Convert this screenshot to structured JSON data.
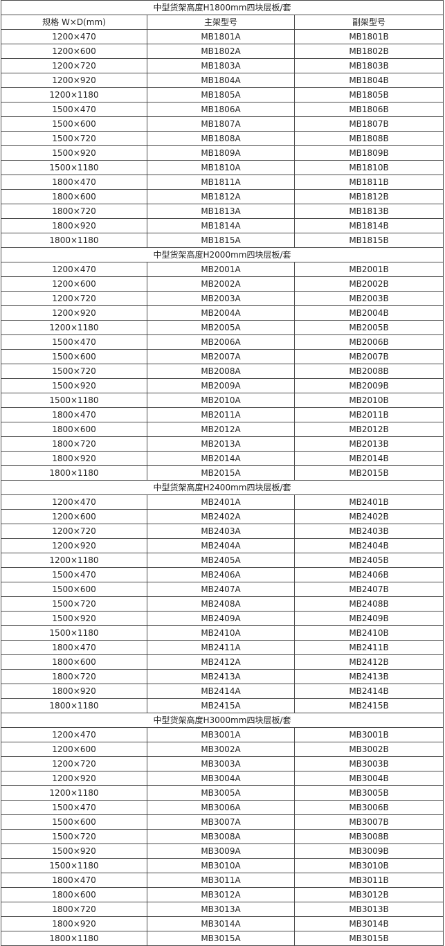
{
  "header": {
    "spec": "规格 W×D(mm)",
    "main": "主架型号",
    "sub": "副架型号"
  },
  "sections": [
    {
      "title": "中型货架高度H1800mm四块层板/套",
      "rows": [
        [
          "1200×470",
          "MB1801A",
          "MB1801B"
        ],
        [
          "1200×600",
          "MB1802A",
          "MB1802B"
        ],
        [
          "1200×720",
          "MB1803A",
          "MB1803B"
        ],
        [
          "1200×920",
          "MB1804A",
          "MB1804B"
        ],
        [
          "1200×1180",
          "MB1805A",
          "MB1805B"
        ],
        [
          "1500×470",
          "MB1806A",
          "MB1806B"
        ],
        [
          "1500×600",
          "MB1807A",
          "MB1807B"
        ],
        [
          "1500×720",
          "MB1808A",
          "MB1808B"
        ],
        [
          "1500×920",
          "MB1809A",
          "MB1809B"
        ],
        [
          "1500×1180",
          "MB1810A",
          "MB1810B"
        ],
        [
          "1800×470",
          "MB1811A",
          "MB1811B"
        ],
        [
          "1800×600",
          "MB1812A",
          "MB1812B"
        ],
        [
          "1800×720",
          "MB1813A",
          "MB1813B"
        ],
        [
          "1800×920",
          "MB1814A",
          "MB1814B"
        ],
        [
          "1800×1180",
          "MB1815A",
          "MB1815B"
        ]
      ]
    },
    {
      "title": "中型货架高度H2000mm四块层板/套",
      "rows": [
        [
          "1200×470",
          "MB2001A",
          "MB2001B"
        ],
        [
          "1200×600",
          "MB2002A",
          "MB2002B"
        ],
        [
          "1200×720",
          "MB2003A",
          "MB2003B"
        ],
        [
          "1200×920",
          "MB2004A",
          "MB2004B"
        ],
        [
          "1200×1180",
          "MB2005A",
          "MB2005B"
        ],
        [
          "1500×470",
          "MB2006A",
          "MB2006B"
        ],
        [
          "1500×600",
          "MB2007A",
          "MB2007B"
        ],
        [
          "1500×720",
          "MB2008A",
          "MB2008B"
        ],
        [
          "1500×920",
          "MB2009A",
          "MB2009B"
        ],
        [
          "1500×1180",
          "MB2010A",
          "MB2010B"
        ],
        [
          "1800×470",
          "MB2011A",
          "MB2011B"
        ],
        [
          "1800×600",
          "MB2012A",
          "MB2012B"
        ],
        [
          "1800×720",
          "MB2013A",
          "MB2013B"
        ],
        [
          "1800×920",
          "MB2014A",
          "MB2014B"
        ],
        [
          "1800×1180",
          "MB2015A",
          "MB2015B"
        ]
      ]
    },
    {
      "title": "中型货架高度H2400mm四块层板/套",
      "rows": [
        [
          "1200×470",
          "MB2401A",
          "MB2401B"
        ],
        [
          "1200×600",
          "MB2402A",
          "MB2402B"
        ],
        [
          "1200×720",
          "MB2403A",
          "MB2403B"
        ],
        [
          "1200×920",
          "MB2404A",
          "MB2404B"
        ],
        [
          "1200×1180",
          "MB2405A",
          "MB2405B"
        ],
        [
          "1500×470",
          "MB2406A",
          "MB2406B"
        ],
        [
          "1500×600",
          "MB2407A",
          "MB2407B"
        ],
        [
          "1500×720",
          "MB2408A",
          "MB2408B"
        ],
        [
          "1500×920",
          "MB2409A",
          "MB2409B"
        ],
        [
          "1500×1180",
          "MB2410A",
          "MB2410B"
        ],
        [
          "1800×470",
          "MB2411A",
          "MB2411B"
        ],
        [
          "1800×600",
          "MB2412A",
          "MB2412B"
        ],
        [
          "1800×720",
          "MB2413A",
          "MB2413B"
        ],
        [
          "1800×920",
          "MB2414A",
          "MB2414B"
        ],
        [
          "1800×1180",
          "MB2415A",
          "MB2415B"
        ]
      ]
    },
    {
      "title": "中型货架高度H3000mm四块层板/套",
      "rows": [
        [
          "1200×470",
          "MB3001A",
          "MB3001B"
        ],
        [
          "1200×600",
          "MB3002A",
          "MB3002B"
        ],
        [
          "1200×720",
          "MB3003A",
          "MB3003B"
        ],
        [
          "1200×920",
          "MB3004A",
          "MB3004B"
        ],
        [
          "1200×1180",
          "MB3005A",
          "MB3005B"
        ],
        [
          "1500×470",
          "MB3006A",
          "MB3006B"
        ],
        [
          "1500×600",
          "MB3007A",
          "MB3007B"
        ],
        [
          "1500×720",
          "MB3008A",
          "MB3008B"
        ],
        [
          "1500×920",
          "MB3009A",
          "MB3009B"
        ],
        [
          "1500×1180",
          "MB3010A",
          "MB3010B"
        ],
        [
          "1800×470",
          "MB3011A",
          "MB3011B"
        ],
        [
          "1800×600",
          "MB3012A",
          "MB3012B"
        ],
        [
          "1800×720",
          "MB3013A",
          "MB3013B"
        ],
        [
          "1800×920",
          "MB3014A",
          "MB3014B"
        ],
        [
          "1800×1180",
          "MB3015A",
          "MB3015B"
        ]
      ]
    }
  ]
}
